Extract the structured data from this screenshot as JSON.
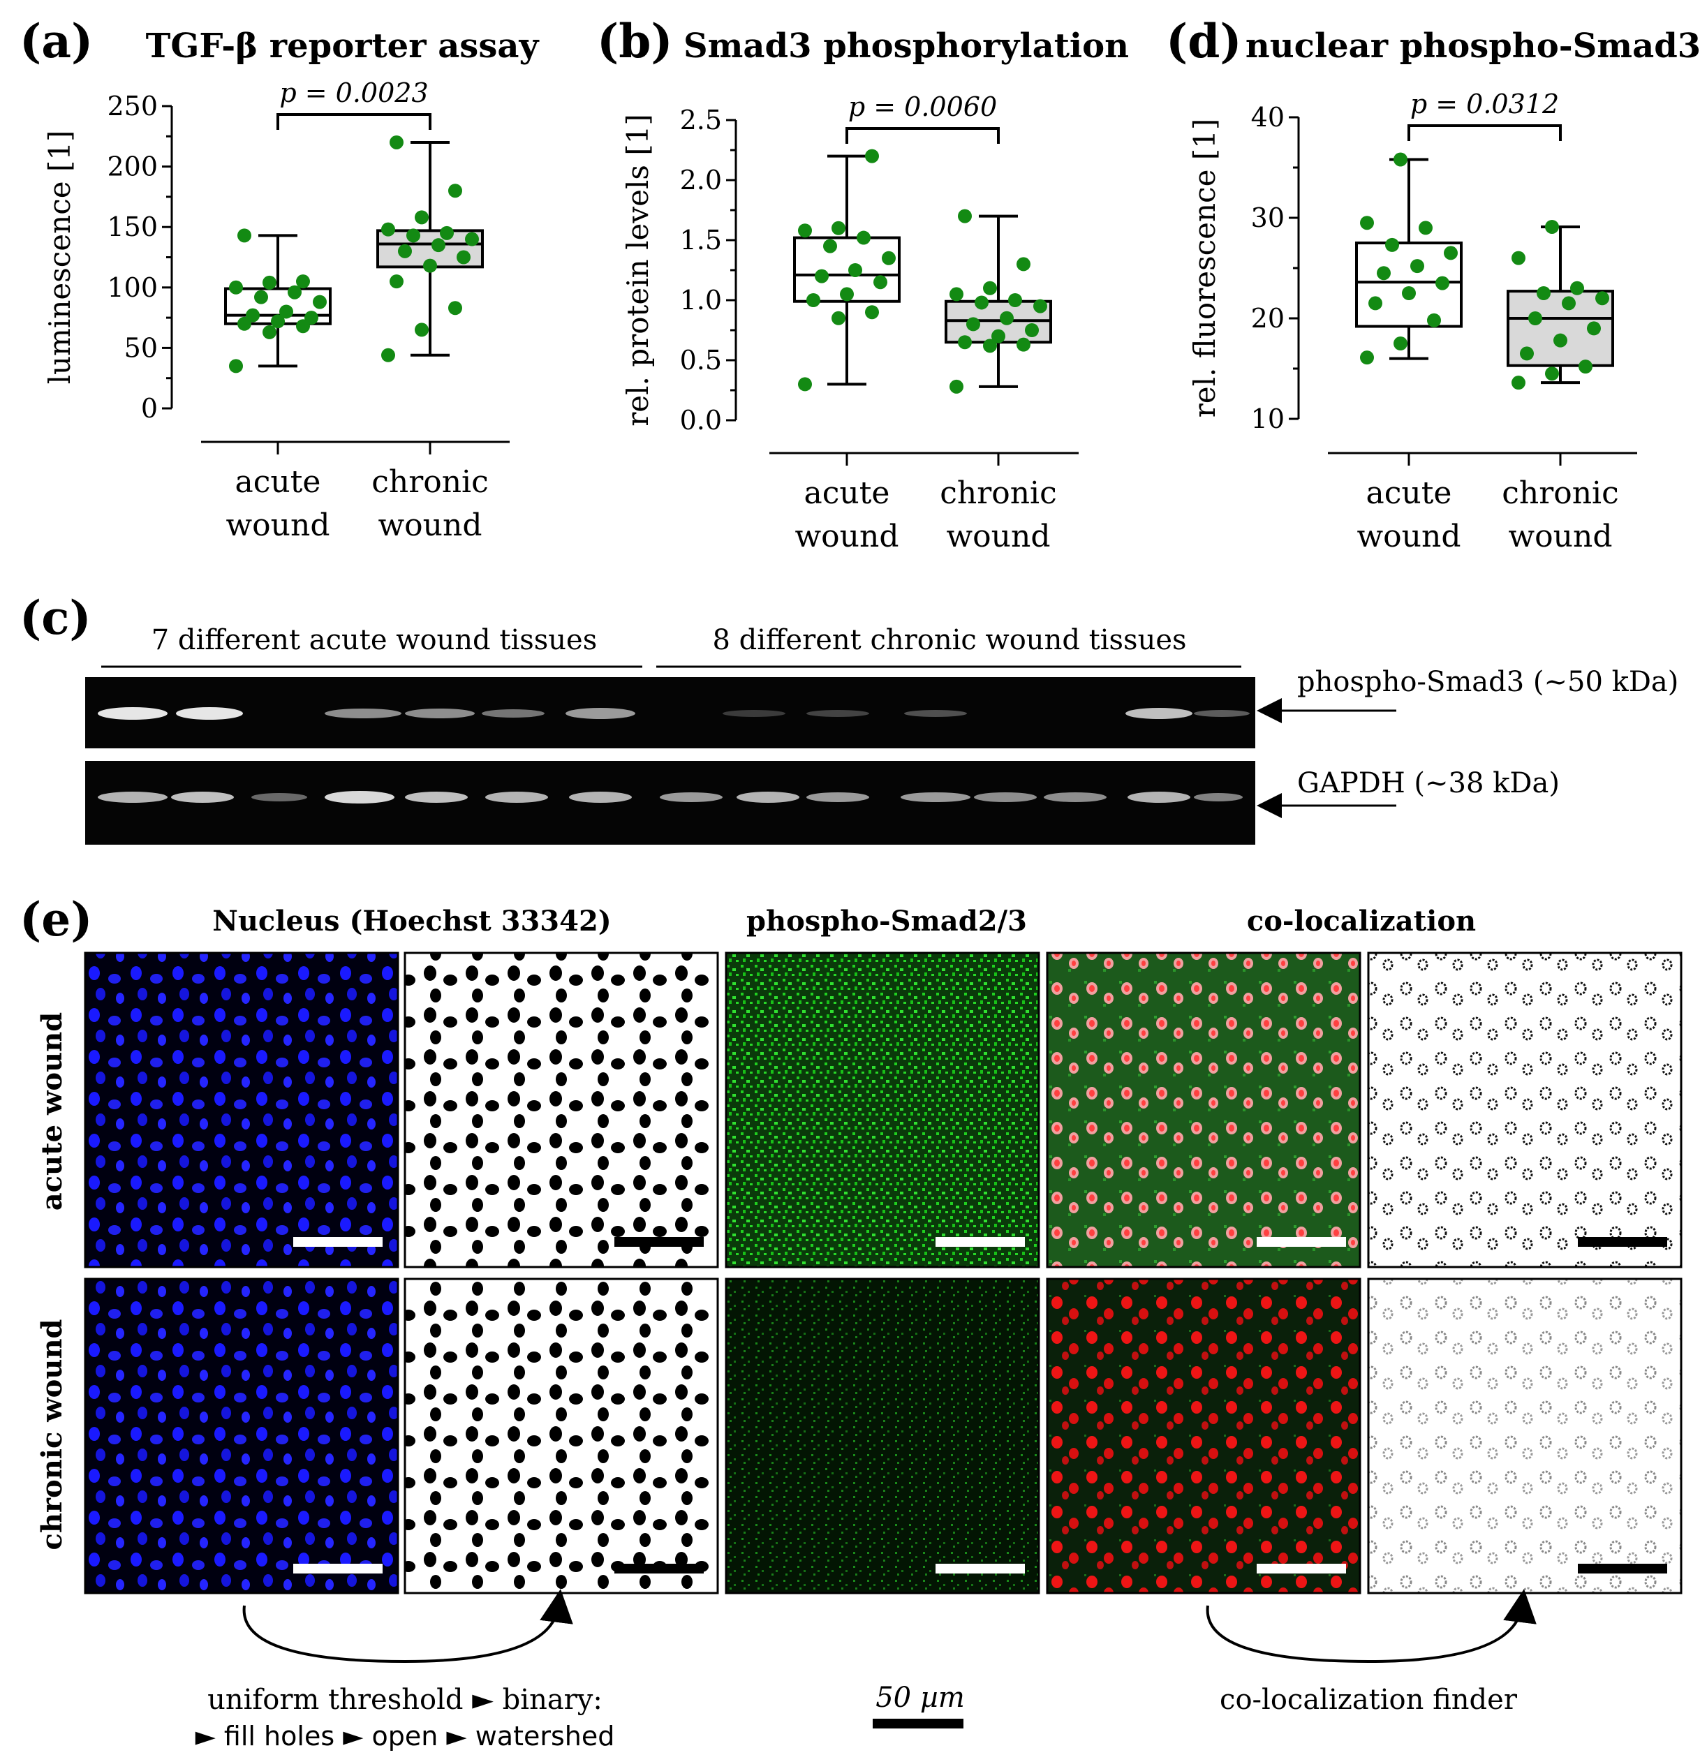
{
  "panels": {
    "a": {
      "letter": "(a)",
      "title": "TGF-β reporter assay",
      "ylabel": "luminescence [1]",
      "yticks": [
        "0",
        "50",
        "100",
        "150",
        "200",
        "250"
      ],
      "categories": [
        "acute\nwound",
        "chronic\nwound"
      ],
      "pvalue": "p = 0.0023"
    },
    "b": {
      "letter": "(b)",
      "title": "Smad3 phosphorylation",
      "ylabel": "rel. protein levels [1]",
      "yticks": [
        "0.0",
        "0.5",
        "1.0",
        "1.5",
        "2.0",
        "2.5"
      ],
      "categories": [
        "acute\nwound",
        "chronic\nwound"
      ],
      "pvalue": "p = 0.0060"
    },
    "d": {
      "letter": "(d)",
      "title": "nuclear phospho-Smad3",
      "ylabel": "rel. fluorescence [1]",
      "yticks": [
        "10",
        "20",
        "30",
        "40"
      ],
      "categories": [
        "acute\nwound",
        "chronic\nwound"
      ],
      "pvalue": "p = 0.0312"
    },
    "c": {
      "letter": "(c)",
      "group_acute": "7 different acute wound tissues",
      "group_chronic": "8 different chronic wound tissues",
      "band1_label": "phospho-Smad3 (~50 kDa)",
      "band2_label": "GAPDH  (~38 kDa)"
    },
    "e": {
      "letter": "(e)",
      "col_nucleus": "Nucleus (Hoechst 33342)",
      "col_smad": "phospho-Smad2/3",
      "col_coloc": "co-localization",
      "row_acute": "acute wound",
      "row_chronic": "chronic wound",
      "note_left_1": "uniform threshold ► binary:",
      "note_left_2": "► fill holes ► open ► watershed",
      "scale_label": "50 µm",
      "note_right": "co-localization finder"
    }
  },
  "chart_data": [
    {
      "type": "box",
      "panel": "a",
      "title": "TGF-β reporter assay",
      "ylabel": "luminescence [1]",
      "ylim": [
        0,
        250
      ],
      "categories": [
        "acute wound",
        "chronic wound"
      ],
      "boxes": [
        {
          "min": 35,
          "q1": 70,
          "median": 77,
          "q3": 99,
          "max": 143
        },
        {
          "min": 44,
          "q1": 117,
          "median": 136,
          "q3": 147,
          "max": 220
        }
      ],
      "points": [
        [
          35,
          63,
          68,
          70,
          72,
          75,
          77,
          80,
          88,
          92,
          96,
          100,
          104,
          105,
          143
        ],
        [
          44,
          65,
          83,
          105,
          118,
          125,
          130,
          135,
          140,
          143,
          145,
          148,
          158,
          180,
          220
        ]
      ],
      "pvalue": 0.0023
    },
    {
      "type": "box",
      "panel": "b",
      "title": "Smad3 phosphorylation",
      "ylabel": "rel. protein levels [1]",
      "ylim": [
        0,
        2.5
      ],
      "categories": [
        "acute wound",
        "chronic wound"
      ],
      "boxes": [
        {
          "min": 0.3,
          "q1": 0.99,
          "median": 1.21,
          "q3": 1.52,
          "max": 2.2
        },
        {
          "min": 0.28,
          "q1": 0.65,
          "median": 0.83,
          "q3": 0.99,
          "max": 1.7
        }
      ],
      "points": [
        [
          0.3,
          0.85,
          0.9,
          1.0,
          1.05,
          1.15,
          1.2,
          1.25,
          1.35,
          1.45,
          1.52,
          1.58,
          1.6,
          2.2
        ],
        [
          0.28,
          0.62,
          0.63,
          0.65,
          0.7,
          0.75,
          0.8,
          0.85,
          0.95,
          0.98,
          1.0,
          1.05,
          1.1,
          1.3,
          1.7
        ]
      ],
      "pvalue": 0.006
    },
    {
      "type": "box",
      "panel": "d",
      "title": "nuclear phospho-Smad3",
      "ylabel": "rel. fluorescence [1]",
      "ylim": [
        10,
        40
      ],
      "categories": [
        "acute wound",
        "chronic wound"
      ],
      "boxes": [
        {
          "min": 16,
          "q1": 19.2,
          "median": 23.6,
          "q3": 27.5,
          "max": 35.8
        },
        {
          "min": 13.6,
          "q1": 15.3,
          "median": 20,
          "q3": 22.7,
          "max": 29.1
        }
      ],
      "points": [
        [
          16.1,
          17.5,
          19.8,
          21.5,
          22.5,
          23.5,
          24.5,
          25.2,
          26.5,
          27.3,
          29,
          29.5,
          35.8
        ],
        [
          13.6,
          14.5,
          15.2,
          16.5,
          17.8,
          19,
          20,
          21.5,
          22,
          22.5,
          23,
          26,
          29.1
        ]
      ],
      "pvalue": 0.0312
    }
  ]
}
